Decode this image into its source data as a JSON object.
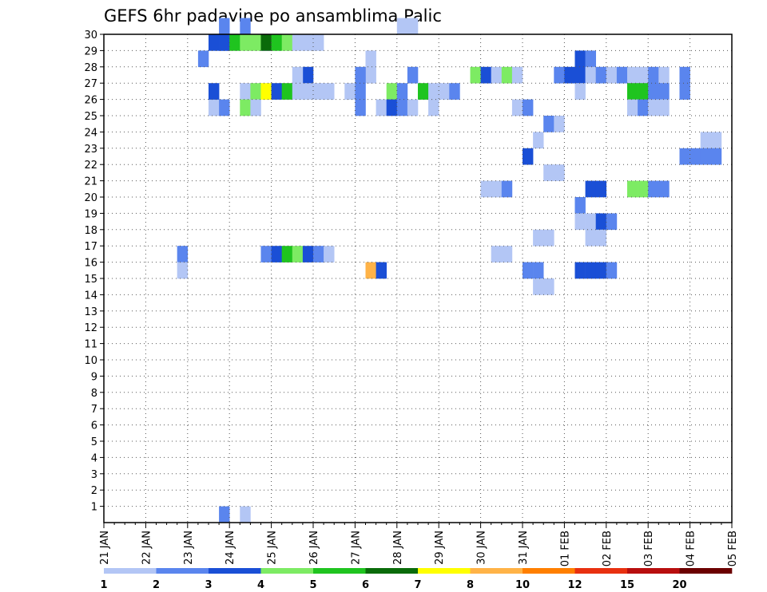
{
  "chart_data": {
    "type": "heatmap",
    "title": "GEFS 6hr padavine po ansamblima Palic",
    "xlabel": "",
    "ylabel": "",
    "grid": true,
    "x_ticks": [
      "21 JAN",
      "22 JAN",
      "23 JAN",
      "24 JAN",
      "25 JAN",
      "26 JAN",
      "27 JAN",
      "28 JAN",
      "29 JAN",
      "30 JAN",
      "31 JAN",
      "01 FEB",
      "02 FEB",
      "03 FEB",
      "04 FEB",
      "05 FEB"
    ],
    "x_range": [
      0,
      60
    ],
    "x_unit": "6-hour steps from 21 JAN 00",
    "y_ticks": [
      1,
      2,
      3,
      4,
      5,
      6,
      7,
      8,
      9,
      10,
      11,
      12,
      13,
      14,
      15,
      16,
      17,
      18,
      19,
      20,
      21,
      22,
      23,
      24,
      25,
      26,
      27,
      28,
      29,
      30
    ],
    "y_range": [
      0,
      30
    ],
    "colorbar": {
      "labels": [
        "1",
        "2",
        "3",
        "4",
        "5",
        "6",
        "7",
        "8",
        "10",
        "12",
        "15",
        "20"
      ],
      "colors": [
        "#b3c6f5",
        "#5a85ee",
        "#1a4fd6",
        "#7deb63",
        "#1fc41f",
        "#0a6b0a",
        "#ffff00",
        "#ffb347",
        "#ff7f00",
        "#e83010",
        "#b80e0e",
        "#6b0000"
      ]
    },
    "cells": [
      [
        11,
        0,
        2
      ],
      [
        13,
        0,
        1
      ],
      [
        9,
        28,
        2
      ],
      [
        11,
        29,
        2
      ],
      [
        11,
        30,
        2
      ],
      [
        13,
        30,
        2
      ],
      [
        15,
        29,
        2
      ],
      [
        28,
        30,
        1
      ],
      [
        29,
        30,
        1
      ],
      [
        45,
        28,
        3
      ],
      [
        46,
        28,
        2
      ],
      [
        25,
        28,
        1
      ],
      [
        25,
        27,
        1
      ],
      [
        19,
        27,
        3
      ],
      [
        18,
        27,
        1
      ],
      [
        55,
        27,
        2
      ],
      [
        55,
        26,
        2
      ],
      [
        13,
        26,
        1
      ],
      [
        14,
        26,
        4
      ],
      [
        15,
        26,
        7
      ],
      [
        16,
        26,
        3
      ],
      [
        17,
        26,
        5
      ],
      [
        18,
        26,
        1
      ],
      [
        19,
        26,
        1
      ],
      [
        20,
        26,
        1
      ],
      [
        21,
        26,
        1
      ],
      [
        23,
        26,
        1
      ],
      [
        24,
        26,
        2
      ],
      [
        27,
        26,
        4
      ],
      [
        28,
        26,
        2
      ],
      [
        30,
        26,
        5
      ],
      [
        31,
        26,
        1
      ],
      [
        32,
        26,
        1
      ],
      [
        33,
        26,
        2
      ],
      [
        10,
        29,
        3
      ],
      [
        11,
        29,
        3
      ],
      [
        12,
        29,
        5
      ],
      [
        13,
        29,
        4
      ],
      [
        14,
        29,
        4
      ],
      [
        15,
        29,
        6
      ],
      [
        16,
        29,
        5
      ],
      [
        17,
        29,
        4
      ],
      [
        18,
        29,
        1
      ],
      [
        19,
        29,
        1
      ],
      [
        20,
        29,
        1
      ],
      [
        24,
        27,
        2
      ],
      [
        29,
        27,
        2
      ],
      [
        35,
        27,
        4
      ],
      [
        36,
        27,
        3
      ],
      [
        37,
        27,
        1
      ],
      [
        38,
        27,
        4
      ],
      [
        39,
        27,
        1
      ],
      [
        43,
        27,
        2
      ],
      [
        44,
        27,
        3
      ],
      [
        45,
        27,
        3
      ],
      [
        46,
        27,
        1
      ],
      [
        47,
        27,
        2
      ],
      [
        48,
        27,
        1
      ],
      [
        49,
        27,
        2
      ],
      [
        50,
        27,
        1
      ],
      [
        51,
        27,
        1
      ],
      [
        52,
        27,
        2
      ],
      [
        53,
        27,
        1
      ],
      [
        45,
        26,
        1
      ],
      [
        50,
        26,
        5
      ],
      [
        51,
        26,
        5
      ],
      [
        52,
        26,
        2
      ],
      [
        53,
        26,
        2
      ],
      [
        10,
        25,
        1
      ],
      [
        10,
        26,
        3
      ],
      [
        11,
        25,
        2
      ],
      [
        13,
        25,
        4
      ],
      [
        14,
        25,
        1
      ],
      [
        24,
        25,
        2
      ],
      [
        26,
        25,
        1
      ],
      [
        27,
        25,
        3
      ],
      [
        28,
        25,
        2
      ],
      [
        29,
        25,
        1
      ],
      [
        31,
        25,
        1
      ],
      [
        39,
        25,
        1
      ],
      [
        40,
        25,
        2
      ],
      [
        50,
        25,
        1
      ],
      [
        51,
        25,
        2
      ],
      [
        52,
        25,
        1
      ],
      [
        53,
        25,
        1
      ],
      [
        42,
        24,
        2
      ],
      [
        43,
        24,
        1
      ],
      [
        57,
        23,
        1
      ],
      [
        58,
        23,
        1
      ],
      [
        41,
        23,
        1
      ],
      [
        40,
        22,
        3
      ],
      [
        55,
        22,
        2
      ],
      [
        56,
        22,
        2
      ],
      [
        57,
        22,
        2
      ],
      [
        58,
        22,
        2
      ],
      [
        42,
        21,
        1
      ],
      [
        43,
        21,
        1
      ],
      [
        36,
        20,
        1
      ],
      [
        37,
        20,
        1
      ],
      [
        38,
        20,
        2
      ],
      [
        46,
        20,
        3
      ],
      [
        47,
        20,
        3
      ],
      [
        50,
        20,
        4
      ],
      [
        51,
        20,
        4
      ],
      [
        52,
        20,
        2
      ],
      [
        53,
        20,
        2
      ],
      [
        45,
        19,
        2
      ],
      [
        45,
        18,
        1
      ],
      [
        46,
        18,
        1
      ],
      [
        47,
        18,
        3
      ],
      [
        48,
        18,
        2
      ],
      [
        41,
        17,
        1
      ],
      [
        42,
        17,
        1
      ],
      [
        46,
        17,
        1
      ],
      [
        47,
        17,
        1
      ],
      [
        7,
        16,
        2
      ],
      [
        7,
        15,
        1
      ],
      [
        15,
        16,
        2
      ],
      [
        16,
        16,
        3
      ],
      [
        17,
        16,
        5
      ],
      [
        18,
        16,
        4
      ],
      [
        19,
        16,
        3
      ],
      [
        20,
        16,
        2
      ],
      [
        21,
        16,
        1
      ],
      [
        37,
        16,
        1
      ],
      [
        38,
        16,
        1
      ],
      [
        25,
        15,
        8
      ],
      [
        26,
        15,
        3
      ],
      [
        40,
        15,
        2
      ],
      [
        41,
        15,
        2
      ],
      [
        45,
        15,
        3
      ],
      [
        46,
        15,
        3
      ],
      [
        47,
        15,
        3
      ],
      [
        48,
        15,
        2
      ],
      [
        41,
        14,
        1
      ],
      [
        42,
        14,
        1
      ]
    ]
  }
}
